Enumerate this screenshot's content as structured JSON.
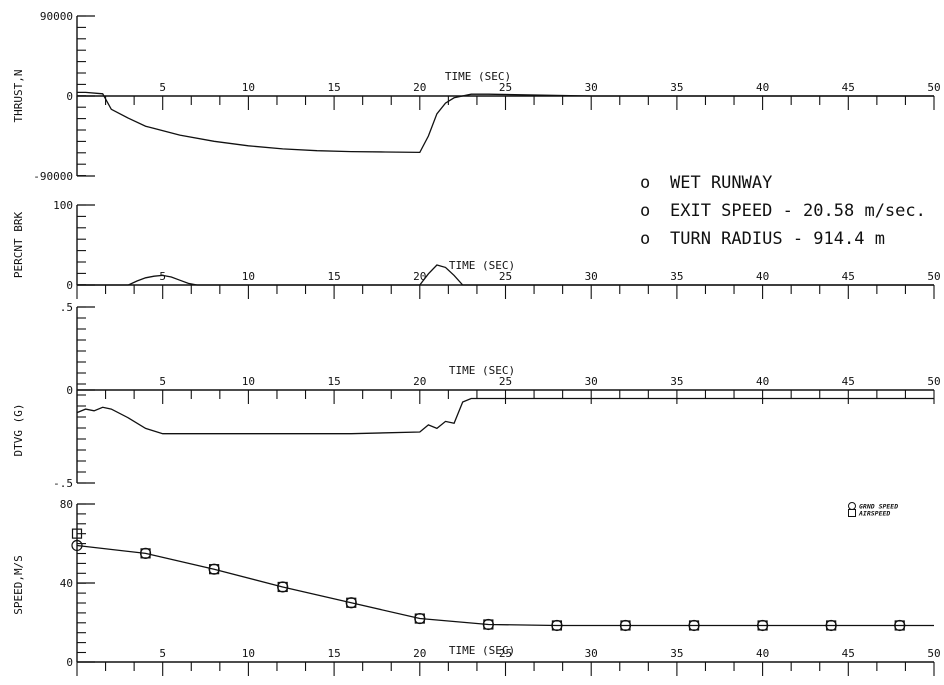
{
  "annotations": {
    "lines": [
      {
        "bullet": "o",
        "text": "WET RUNWAY"
      },
      {
        "bullet": "o",
        "text": "EXIT SPEED -  20.58 m/sec."
      },
      {
        "bullet": "o",
        "text": "TURN RADIUS - 914.4 m"
      }
    ]
  },
  "chart_data": [
    {
      "type": "line",
      "ylabel": "THRUST,N",
      "xlabel": "TIME (SEC)",
      "xlim": [
        0,
        50
      ],
      "ylim": [
        -90000,
        90000
      ],
      "x_tick_labels": [
        "5",
        "10",
        "15",
        "20",
        "25",
        "30",
        "35",
        "40",
        "45",
        "50"
      ],
      "y_tick_labels": [
        "90000",
        "0",
        "-90000"
      ],
      "grid": false,
      "series": [
        {
          "x": [
            0,
            0.5,
            1.5,
            2,
            3,
            4,
            6,
            8,
            10,
            12,
            14,
            16,
            18,
            20,
            20.5,
            21,
            21.5,
            22,
            23,
            24,
            30,
            40,
            50
          ],
          "y": [
            4000,
            4000,
            2500,
            -15000,
            -25000,
            -34000,
            -44000,
            -51000,
            -56000,
            -59500,
            -61500,
            -62500,
            -63000,
            -63500,
            -45000,
            -20000,
            -8000,
            -2000,
            2000,
            2000,
            0,
            0,
            0
          ]
        }
      ]
    },
    {
      "type": "line",
      "ylabel": "PERCNT BRK",
      "xlabel": "TIME (SEC)",
      "xlim": [
        0,
        50
      ],
      "ylim": [
        0,
        100
      ],
      "x_tick_labels": [
        "5",
        "10",
        "15",
        "20",
        "25",
        "30",
        "35",
        "40",
        "45",
        "50"
      ],
      "y_tick_labels": [
        "100",
        "0"
      ],
      "grid": false,
      "series": [
        {
          "x": [
            0,
            3,
            3.5,
            4,
            4.5,
            5,
            5.5,
            6,
            6.5,
            7,
            20,
            20.5,
            21,
            21.5,
            22,
            22.5,
            50
          ],
          "y": [
            0,
            0,
            5,
            9,
            11,
            12,
            10,
            6,
            2,
            0,
            0,
            14,
            25,
            22,
            12,
            0,
            0
          ]
        }
      ]
    },
    {
      "type": "line",
      "ylabel": "DTVG (G)",
      "xlabel": "TIME (SEC)",
      "xlim": [
        0,
        50
      ],
      "ylim": [
        -0.5,
        0.5
      ],
      "x_tick_labels": [
        "5",
        "10",
        "15",
        "20",
        "25",
        "30",
        "35",
        "40",
        "45",
        "50"
      ],
      "y_tick_labels": [
        ".5",
        "0",
        "-.5"
      ],
      "grid": false,
      "series": [
        {
          "x": [
            0,
            0.5,
            1,
            1.5,
            2,
            3,
            4,
            5,
            8,
            12,
            16,
            20,
            20.5,
            21,
            21.5,
            22,
            22.5,
            23,
            30,
            40,
            50
          ],
          "y": [
            -0.1,
            -0.08,
            -0.09,
            -0.07,
            -0.08,
            -0.13,
            -0.19,
            -0.22,
            -0.22,
            -0.22,
            -0.22,
            -0.21,
            -0.17,
            -0.19,
            -0.15,
            -0.16,
            -0.04,
            -0.02,
            -0.02,
            -0.02,
            -0.02
          ]
        }
      ]
    },
    {
      "type": "line",
      "ylabel": "SPEED,M/S",
      "xlabel": "TIME (SEC)",
      "xlim": [
        0,
        50
      ],
      "ylim": [
        0,
        80
      ],
      "x_tick_labels": [
        "5",
        "10",
        "15",
        "20",
        "25",
        "30",
        "35",
        "40",
        "45",
        "50"
      ],
      "y_tick_labels": [
        "80",
        "40",
        "0"
      ],
      "grid": false,
      "legend": "top-right",
      "series": [
        {
          "name": "GRND SPEED",
          "marker": "circle",
          "x": [
            0,
            4,
            8,
            12,
            16,
            20,
            24,
            28,
            32,
            36,
            40,
            44,
            48,
            50
          ],
          "y": [
            59,
            55,
            47,
            38,
            30,
            22,
            19,
            18.5,
            18.5,
            18.5,
            18.5,
            18.5,
            18.5,
            18.5
          ],
          "marked_x": [
            0,
            4,
            8,
            12,
            16,
            20,
            24,
            28,
            32,
            36,
            40,
            44,
            48
          ]
        },
        {
          "name": "AIRSPEED",
          "marker": "square",
          "x": [
            0,
            4,
            8,
            12,
            16,
            20,
            24,
            28,
            32,
            36,
            40,
            44,
            48
          ],
          "y": [
            65,
            55,
            47,
            38,
            30,
            22,
            19,
            18.5,
            18.5,
            18.5,
            18.5,
            18.5,
            18.5
          ],
          "marked_x": [
            0,
            4,
            8,
            12,
            16,
            20,
            24,
            28,
            32,
            36,
            40,
            44,
            48
          ]
        }
      ]
    }
  ]
}
